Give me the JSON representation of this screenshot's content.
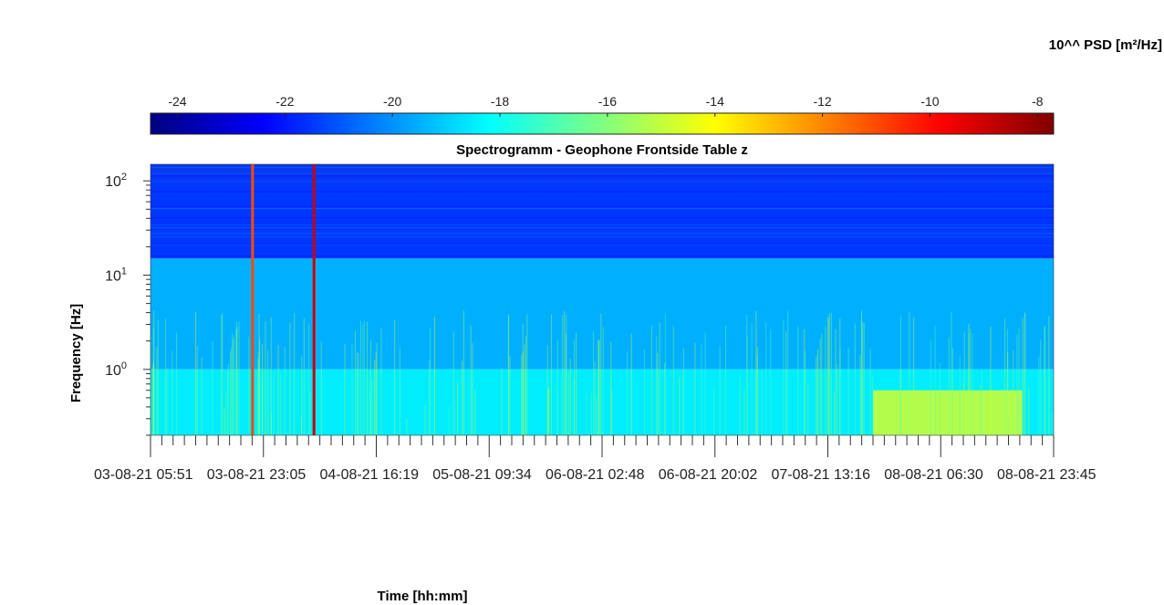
{
  "chart_data": {
    "type": "heatmap",
    "title": "Spectrogramm - Geophone Frontside Table z",
    "xlabel": "Time [hh:mm]",
    "ylabel": "Frequency [Hz]",
    "yscale": "log",
    "ylim": [
      0.2,
      150
    ],
    "ytick_values": [
      1,
      10,
      100
    ],
    "ytick_labels": [
      {
        "base": "10",
        "exp": "0"
      },
      {
        "base": "10",
        "exp": "1"
      },
      {
        "base": "10",
        "exp": "2"
      }
    ],
    "xtick_labels": [
      {
        "date": "03-08-21",
        "time": "05:51"
      },
      {
        "date": "03-08-21",
        "time": "23:05"
      },
      {
        "date": "04-08-21",
        "time": "16:19"
      },
      {
        "date": "05-08-21",
        "time": "09:34"
      },
      {
        "date": "06-08-21",
        "time": "02:48"
      },
      {
        "date": "06-08-21",
        "time": "20:02"
      },
      {
        "date": "07-08-21",
        "time": "13:16"
      },
      {
        "date": "08-08-21",
        "time": "06:30"
      },
      {
        "date": "08-08-21",
        "time": "23:45"
      }
    ],
    "colorbar": {
      "label": "10^^ PSD [m²/Hz]",
      "location": "top",
      "range": [
        -24.5,
        -7.7
      ],
      "ticks": [
        -24,
        -22,
        -20,
        -18,
        -16,
        -14,
        -12,
        -10,
        -8
      ],
      "colormap": "jet"
    },
    "regions": [
      {
        "description_level": "above 15 Hz",
        "freq_range_hz": [
          15,
          150
        ],
        "log_psd": -21.5
      },
      {
        "description_level": "1 - 15 Hz",
        "freq_range_hz": [
          1,
          15
        ],
        "log_psd": -19.5
      },
      {
        "description_level": "below 1 Hz",
        "freq_range_hz": [
          0.2,
          1
        ],
        "log_psd": -18.5
      },
      {
        "description_level": "low-frequency end of record",
        "freq_range_hz": [
          0.2,
          0.6
        ],
        "log_psd": -14.5
      }
    ],
    "transient_events": [
      {
        "time_fraction": 0.113,
        "log_psd_peak": -11
      },
      {
        "time_fraction": 0.181,
        "log_psd_peak": -9
      }
    ]
  }
}
